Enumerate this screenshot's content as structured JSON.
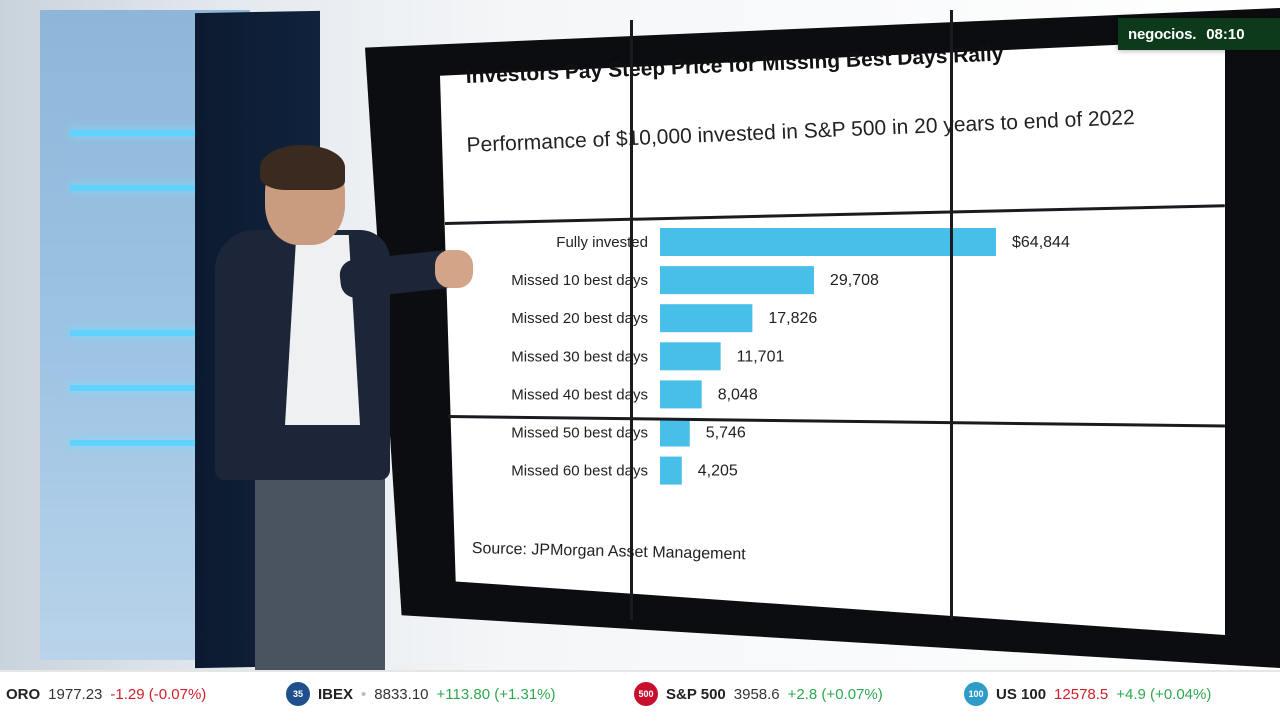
{
  "logo": {
    "brand": "negocios.",
    "time": "08:10"
  },
  "chart_data": {
    "type": "bar",
    "orientation": "horizontal",
    "title": "Investors Pay Steep Price for Missing Best Days Rally",
    "subtitle": "Performance of $10,000 invested in S&P 500 in 20 years to end of 2022",
    "categories": [
      "Fully invested",
      "Missed 10 best days",
      "Missed 20 best days",
      "Missed 30 best days",
      "Missed 40 best days",
      "Missed 50 best days",
      "Missed 60 best days"
    ],
    "values": [
      64844,
      29708,
      17826,
      11701,
      8048,
      5746,
      4205
    ],
    "data_labels": [
      "$64,844",
      "29,708",
      "17,826",
      "11,701",
      "8,048",
      "5,746",
      "4,205"
    ],
    "bar_color": "#48bfe8",
    "grid": false,
    "legend": "none",
    "source": "Source: JPMorgan Asset Management"
  },
  "ticker": [
    {
      "badge": "",
      "badge_color": "",
      "name": "ORO",
      "value": "1977.23",
      "change": "-1.29 (-0.07%)",
      "direction": "down"
    },
    {
      "badge": "35",
      "badge_color": "#1f4f8c",
      "name": "IBEX",
      "value": "8833.10",
      "change": "+113.80 (+1.31%)",
      "direction": "up"
    },
    {
      "badge": "500",
      "badge_color": "#c8102e",
      "name": "S&P 500",
      "value": "3958.6",
      "change": "+2.8 (+0.07%)",
      "direction": "up"
    },
    {
      "badge": "100",
      "badge_color": "#2e9bc9",
      "name": "US 100",
      "value": "12578.5",
      "change": "+4.9 (+0.04%)",
      "direction": "up"
    }
  ]
}
